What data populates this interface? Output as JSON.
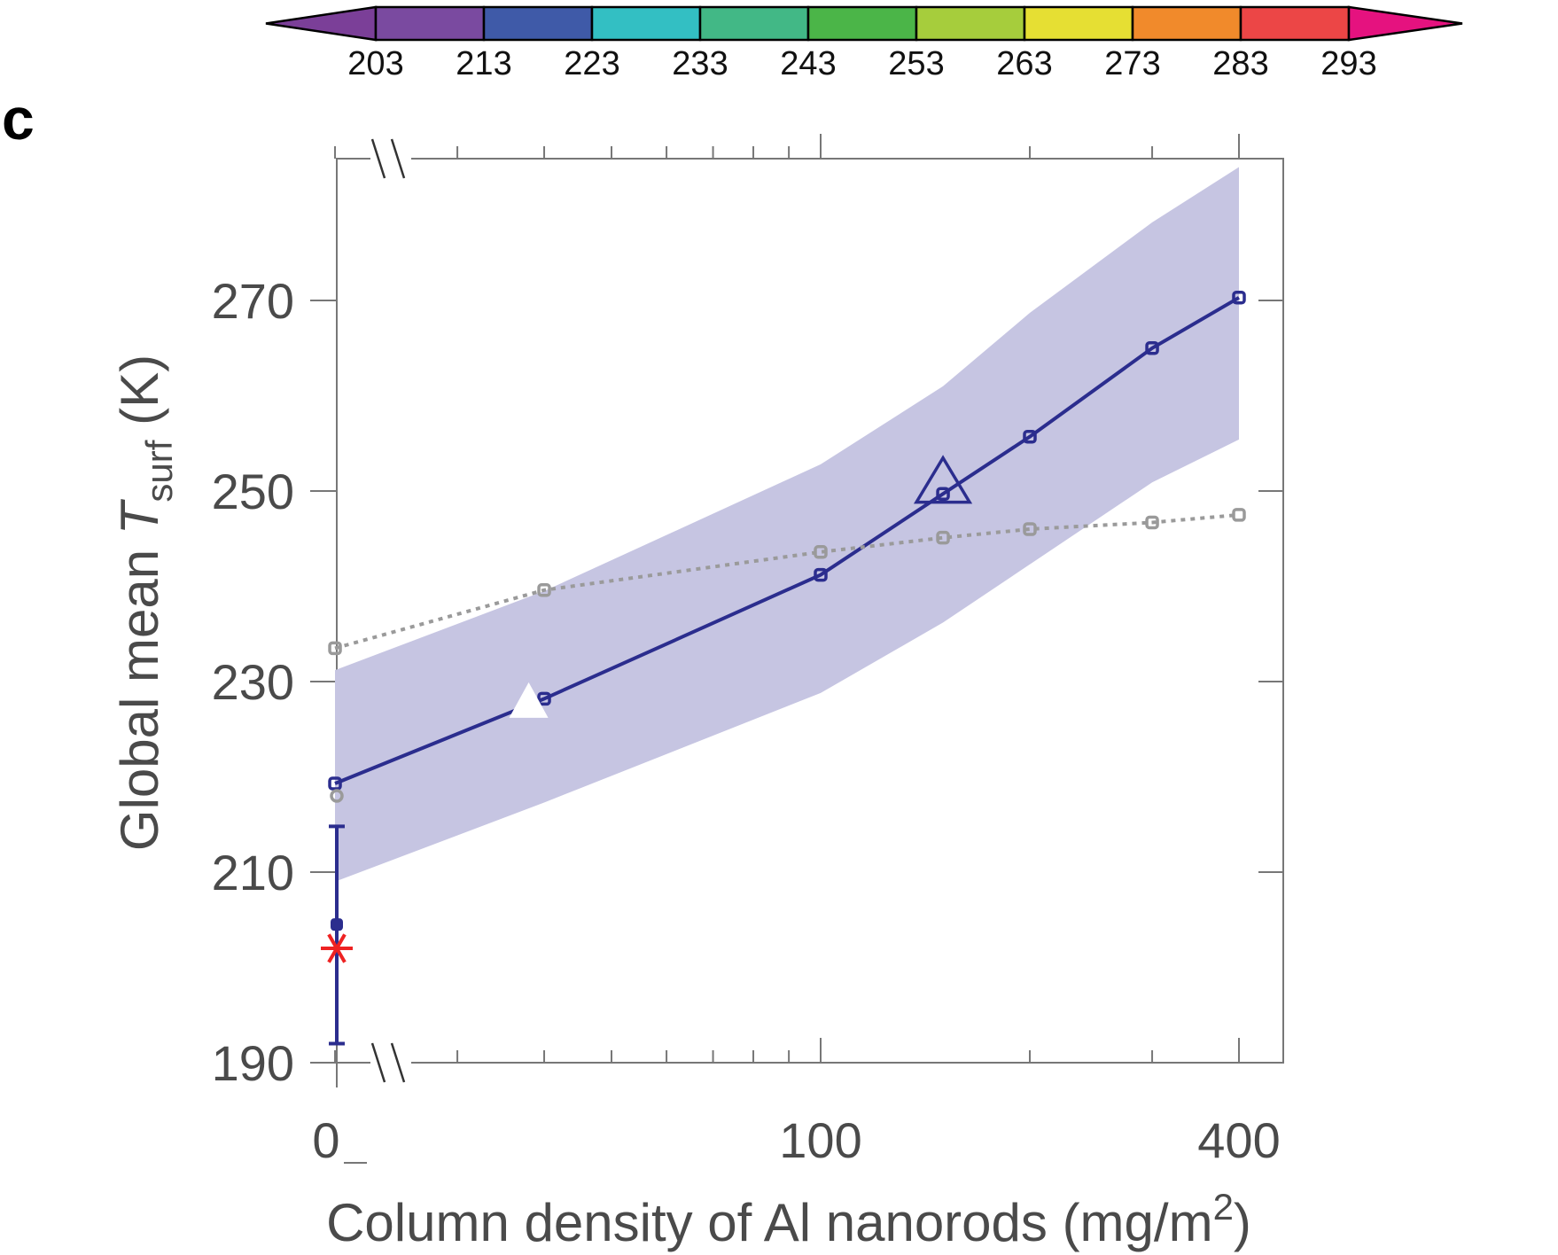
{
  "panel_label": "c",
  "colorbar": {
    "ticks": [
      "203",
      "213",
      "223",
      "233",
      "243",
      "253",
      "263",
      "273",
      "283",
      "293"
    ],
    "colors": [
      "#7b3f98",
      "#7a4aa0",
      "#3f5aa8",
      "#33bfc3",
      "#42b886",
      "#4bb548",
      "#a6cd3c",
      "#e6df33",
      "#f18a2b",
      "#ec4646",
      "#e5127f"
    ]
  },
  "chart_data": {
    "type": "line",
    "xlabel_prefix": "Column density of Al nanorods (mg/m",
    "xlabel_sup": "2",
    "xlabel_suffix": ")",
    "ylabel_prefix": "Global mean ",
    "ylabel_var": "T",
    "ylabel_sub": "surf",
    "ylabel_suffix": " (K)",
    "x_scale": "log with axis break",
    "x_tick_labels": [
      "0",
      "100",
      "400"
    ],
    "x_ticks": [
      0,
      100,
      400
    ],
    "ylim": [
      190,
      285
    ],
    "y_tick_labels": [
      "190",
      "210",
      "230",
      "250",
      "270"
    ],
    "y_ticks": [
      190,
      210,
      230,
      250,
      270
    ],
    "series": [
      {
        "style": "solid",
        "color": "#2b2d8e",
        "x": [
          20,
          40,
          100,
          150,
          200,
          300,
          400
        ],
        "y": [
          219.3,
          228.2,
          241.2,
          249.7,
          255.7,
          265.0,
          270.3
        ]
      },
      {
        "style": "dotted",
        "color": "#9a9a9a",
        "x": [
          20,
          40,
          100,
          150,
          200,
          300,
          400
        ],
        "y": [
          233.5,
          239.6,
          243.6,
          245.1,
          246.0,
          246.7,
          247.5
        ]
      }
    ],
    "band": {
      "color": "#c6c5e2",
      "x": [
        20,
        40,
        100,
        150,
        200,
        300,
        400
      ],
      "upper": [
        231.2,
        239.5,
        252.8,
        261.0,
        268.7,
        278.2,
        284.0
      ],
      "lower": [
        209.0,
        217.3,
        228.8,
        236.2,
        242.3,
        250.9,
        255.4
      ]
    },
    "zero_point": {
      "x": 0,
      "mean": 204.5,
      "error_low": 192.0,
      "error_high": 214.8,
      "observed_star": 202.0,
      "gray_point": 218.0
    },
    "markers": {
      "white_triangle": {
        "x": 38,
        "y": 227.5
      },
      "open_triangle": {
        "x": 150,
        "y": 250.5
      }
    }
  }
}
